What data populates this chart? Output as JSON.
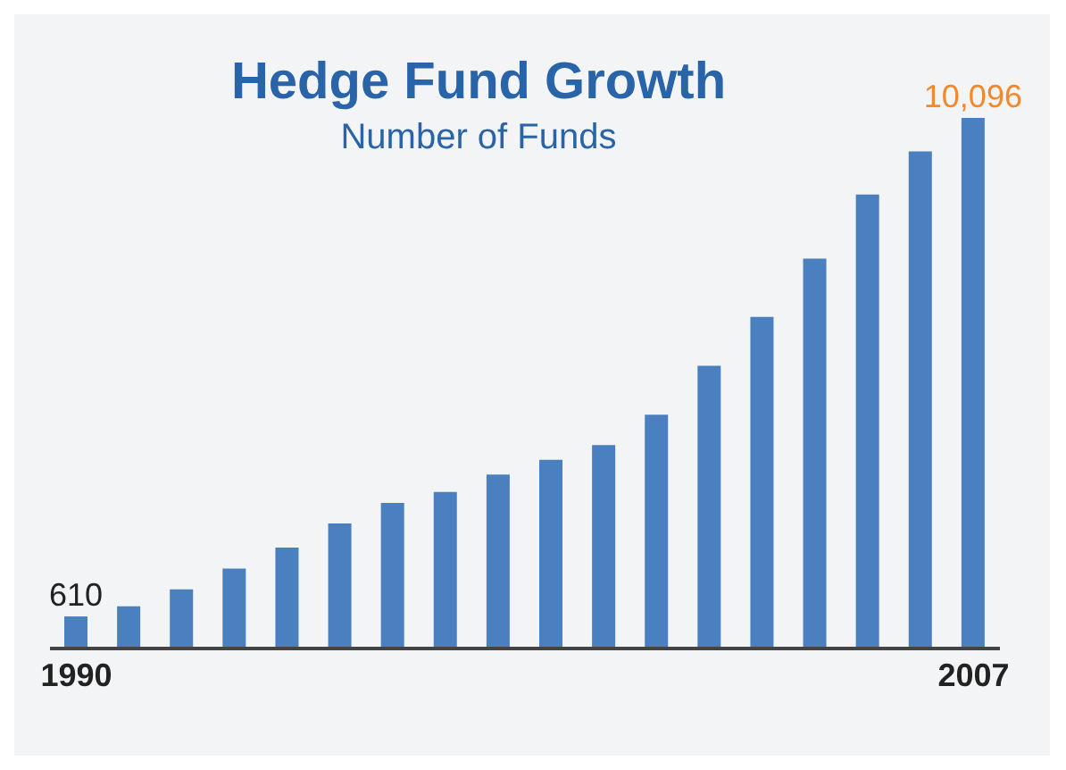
{
  "chart_data": {
    "type": "bar",
    "title": "Hedge Fund Growth",
    "subtitle": "Number of Funds",
    "categories": [
      "1990",
      null,
      null,
      null,
      null,
      null,
      null,
      null,
      null,
      null,
      null,
      null,
      null,
      null,
      null,
      null,
      null,
      "2007"
    ],
    "values": [
      610,
      805,
      1125,
      1520,
      1920,
      2380,
      2770,
      2980,
      3310,
      3590,
      3870,
      4450,
      5380,
      6310,
      7420,
      8640,
      9460,
      10096
    ],
    "value_labels": [
      "610",
      null,
      null,
      null,
      null,
      null,
      null,
      null,
      null,
      null,
      null,
      null,
      null,
      null,
      null,
      null,
      null,
      "10,096"
    ],
    "color": "#4a80c0",
    "grid": false,
    "legend": false
  }
}
